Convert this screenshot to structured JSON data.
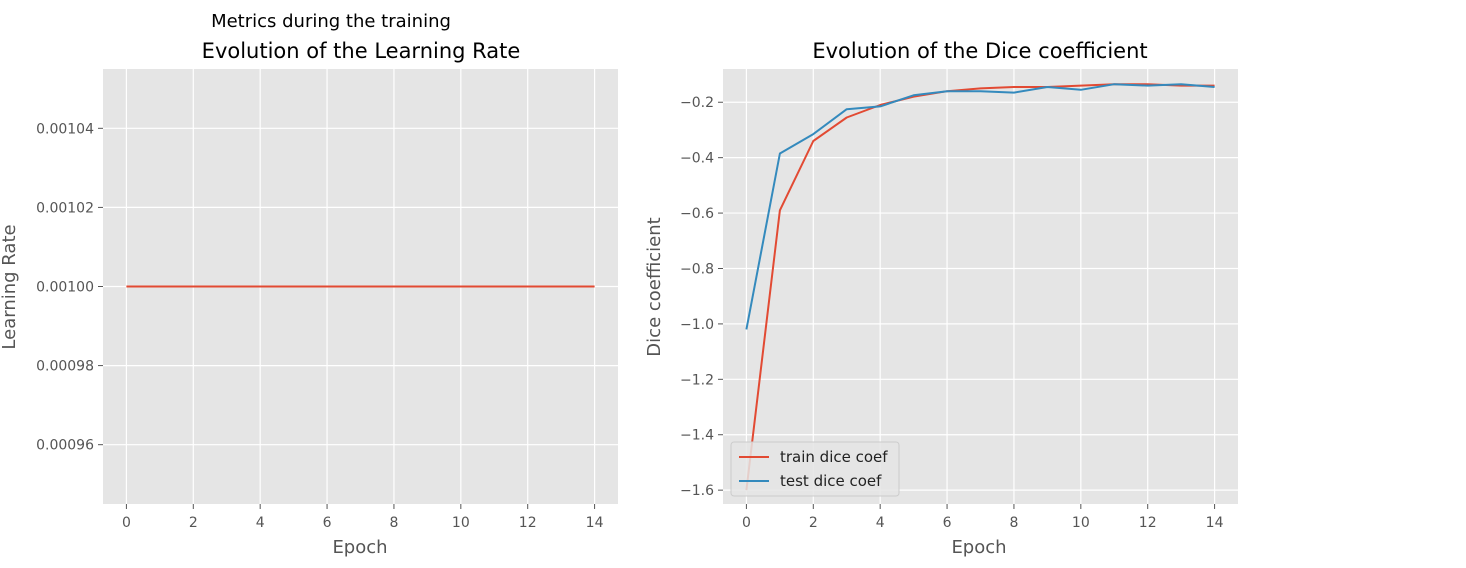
{
  "figure": {
    "suptitle": "Metrics during the training"
  },
  "colors": {
    "axes_background": "#e5e5e5",
    "grid": "#ffffff",
    "tick_text": "#555555",
    "label_text": "#555555",
    "title_text": "#000000",
    "series_red": "#e24a33",
    "series_blue": "#348abd"
  },
  "chart_data": [
    {
      "type": "line",
      "title": "Evolution of the Learning Rate",
      "xlabel": "Epoch",
      "ylabel": "Learning Rate",
      "grid": true,
      "legend": null,
      "xlim": [
        -0.7,
        14.7
      ],
      "ylim": [
        0.000945,
        0.001055
      ],
      "xticks": [
        0,
        2,
        4,
        6,
        8,
        10,
        12,
        14
      ],
      "xtick_labels": [
        "0",
        "2",
        "4",
        "6",
        "8",
        "10",
        "12",
        "14"
      ],
      "yticks": [
        0.00096,
        0.00098,
        0.001,
        0.00102,
        0.00104
      ],
      "ytick_labels": [
        "0.00096",
        "0.00098",
        "0.00100",
        "0.00102",
        "0.00104"
      ],
      "series": [
        {
          "color": "#e24a33",
          "x": [
            0,
            1,
            2,
            3,
            4,
            5,
            6,
            7,
            8,
            9,
            10,
            11,
            12,
            13,
            14
          ],
          "y": [
            0.001,
            0.001,
            0.001,
            0.001,
            0.001,
            0.001,
            0.001,
            0.001,
            0.001,
            0.001,
            0.001,
            0.001,
            0.001,
            0.001,
            0.001
          ]
        }
      ]
    },
    {
      "type": "line",
      "title": "Evolution of the Dice coefficient",
      "xlabel": "Epoch",
      "ylabel": "Dice coefficient",
      "grid": true,
      "legend": "lower-left",
      "xlim": [
        -0.7,
        14.7
      ],
      "ylim": [
        -1.65,
        -0.08
      ],
      "xticks": [
        0,
        2,
        4,
        6,
        8,
        10,
        12,
        14
      ],
      "xtick_labels": [
        "0",
        "2",
        "4",
        "6",
        "8",
        "10",
        "12",
        "14"
      ],
      "yticks": [
        -1.6,
        -1.4,
        -1.2,
        -1.0,
        -0.8,
        -0.6,
        -0.4,
        -0.2
      ],
      "ytick_labels": [
        "−1.6",
        "−1.4",
        "−1.2",
        "−1.0",
        "−0.8",
        "−0.6",
        "−0.4",
        "−0.2"
      ],
      "series": [
        {
          "name": "train dice coef",
          "color": "#e24a33",
          "x": [
            0,
            1,
            2,
            3,
            4,
            5,
            6,
            7,
            8,
            9,
            10,
            11,
            12,
            13,
            14
          ],
          "y": [
            -1.6,
            -0.59,
            -0.34,
            -0.255,
            -0.21,
            -0.18,
            -0.16,
            -0.15,
            -0.145,
            -0.145,
            -0.14,
            -0.135,
            -0.135,
            -0.14,
            -0.14
          ]
        },
        {
          "name": "test dice coef",
          "color": "#348abd",
          "x": [
            0,
            1,
            2,
            3,
            4,
            5,
            6,
            7,
            8,
            9,
            10,
            11,
            12,
            13,
            14
          ],
          "y": [
            -1.02,
            -0.385,
            -0.315,
            -0.225,
            -0.215,
            -0.175,
            -0.16,
            -0.16,
            -0.165,
            -0.145,
            -0.155,
            -0.135,
            -0.14,
            -0.135,
            -0.145
          ]
        }
      ]
    }
  ]
}
